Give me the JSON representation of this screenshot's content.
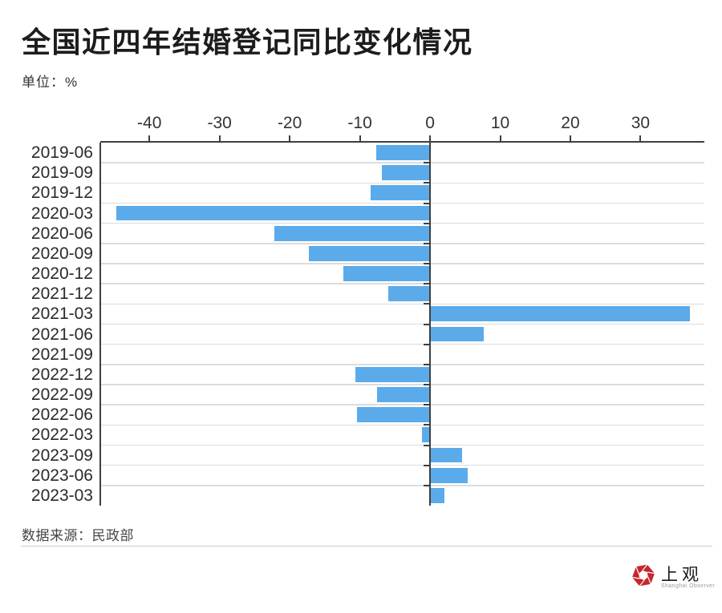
{
  "header": {
    "title": "全国近四年结婚登记同比变化情况",
    "unit_label": "单位：%"
  },
  "footer": {
    "source_label": "数据来源：民政部",
    "logo_name": "上观",
    "logo_subname": "Shanghai Observer",
    "logo_icon": "shangguan-pinwheel-icon",
    "logo_color": "#C5272D"
  },
  "chart_data": {
    "type": "bar",
    "orientation": "horizontal",
    "title": "全国近四年结婚登记同比变化情况",
    "unit": "%",
    "categories": [
      "2019-06",
      "2019-09",
      "2019-12",
      "2020-03",
      "2020-06",
      "2020-09",
      "2020-12",
      "2021-12",
      "2021-03",
      "2021-06",
      "2021-09",
      "2022-12",
      "2022-09",
      "2022-06",
      "2022-03",
      "2023-09",
      "2023-06",
      "2023-03"
    ],
    "values": [
      -7.7,
      -6.9,
      -8.5,
      -44.7,
      -22.2,
      -17.3,
      -12.3,
      -6.0,
      36.9,
      7.6,
      -0.1,
      -10.6,
      -7.5,
      -10.4,
      -1.2,
      4.5,
      5.3,
      1.9
    ],
    "xticks": [
      -40,
      -30,
      -20,
      -10,
      0,
      10,
      20,
      30
    ],
    "xtick_labels": [
      "-40",
      "-30",
      "-20",
      "-10",
      "0",
      "10",
      "20",
      "30"
    ],
    "xlim": [
      -47,
      39.1
    ],
    "grid": true,
    "legend": false,
    "bar_color": "#5BABEB",
    "gridline_color": "#dcdcdc",
    "axis_color": "#3f3f3f",
    "source": "民政部"
  }
}
